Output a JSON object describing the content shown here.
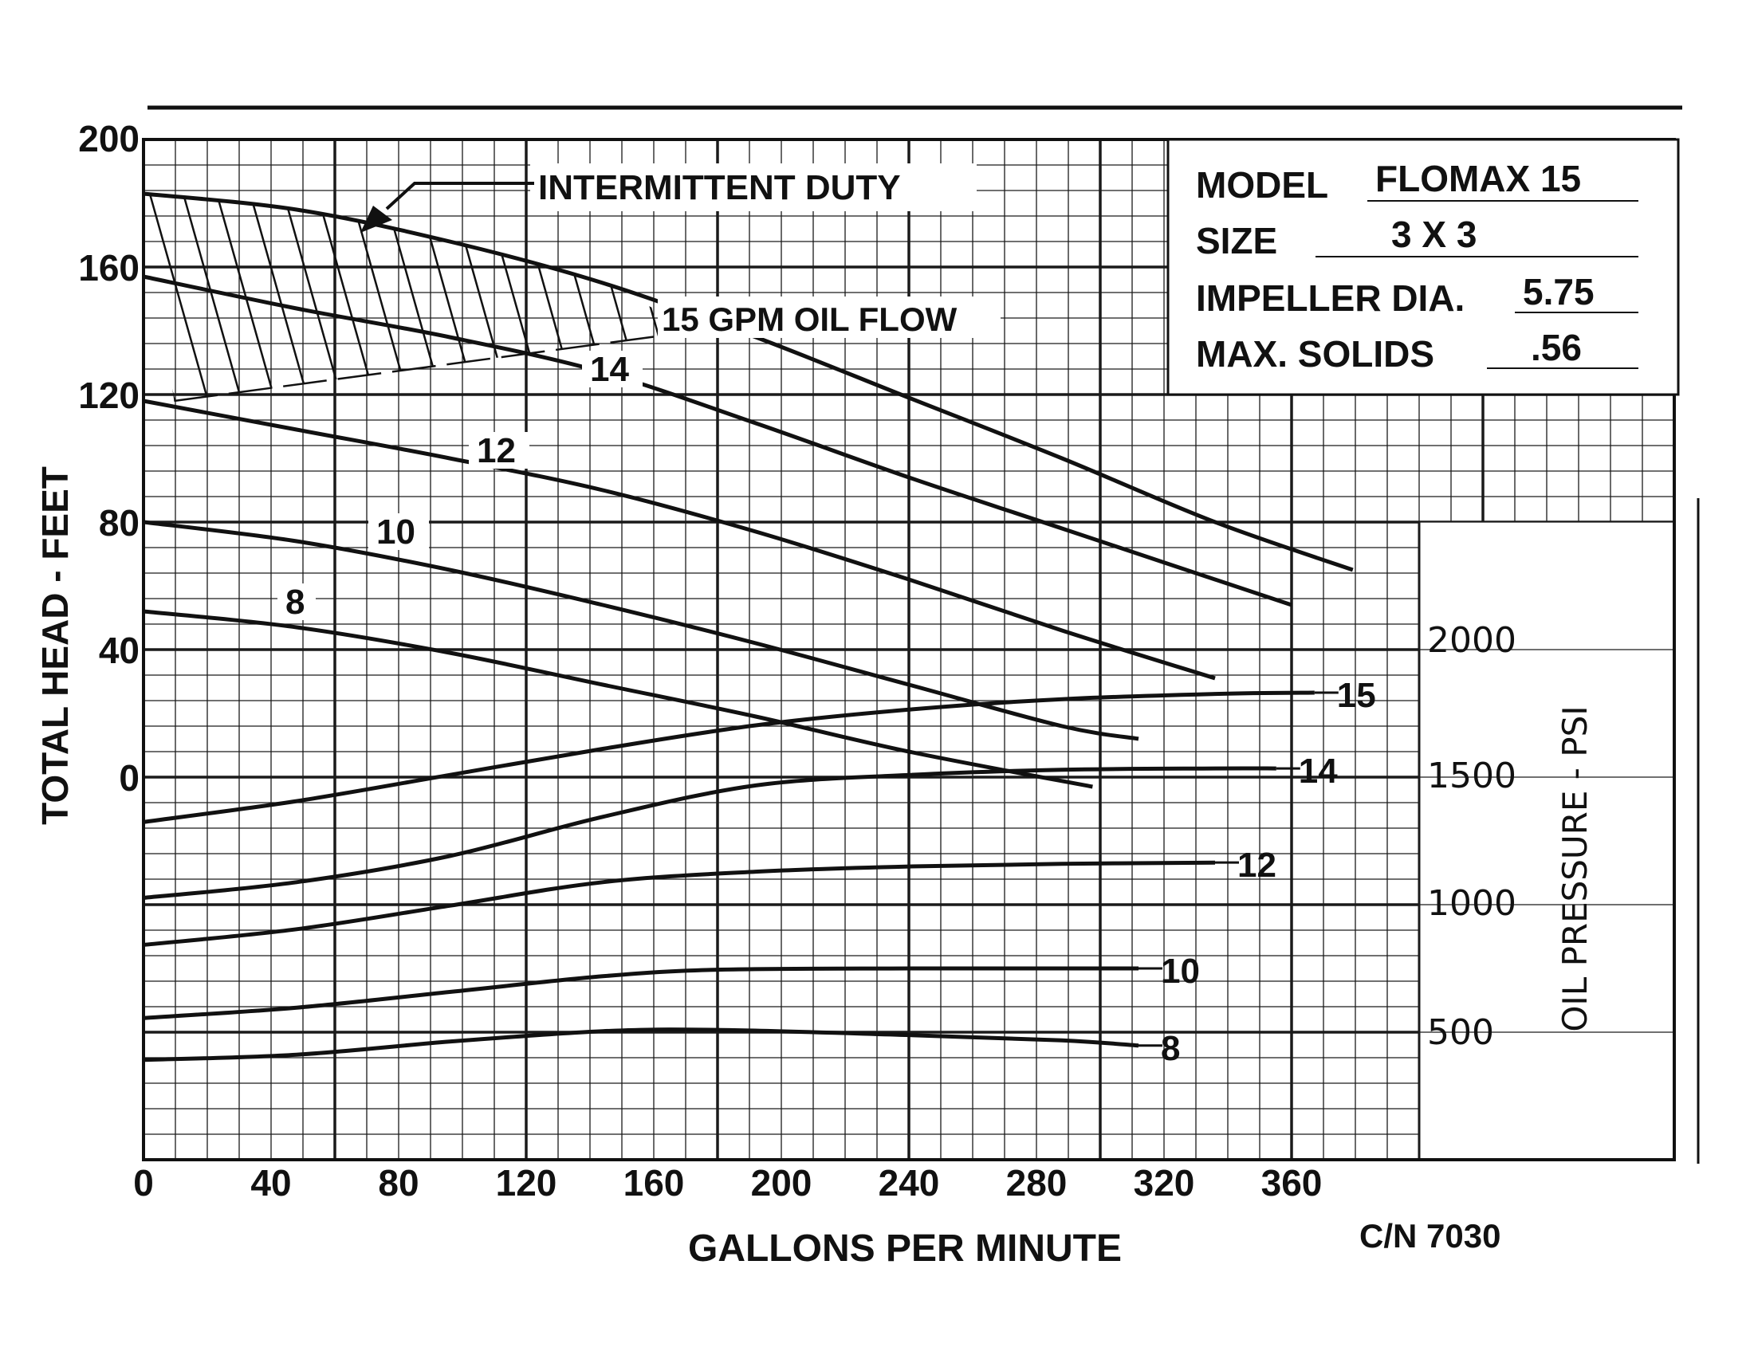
{
  "chart_data": {
    "type": "line",
    "x_axis": {
      "label": "GALLONS PER MINUTE",
      "range": [
        0,
        400
      ],
      "tick_labels": [
        "0",
        "40",
        "80",
        "120",
        "160",
        "200",
        "240",
        "280",
        "320",
        "360"
      ]
    },
    "y_axis_left": {
      "label": "TOTAL HEAD - FEET",
      "range": [
        -120,
        200
      ],
      "tick_labels": [
        "200",
        "160",
        "120",
        "80",
        "40",
        "0"
      ]
    },
    "y_axis_right": {
      "label": "OIL PRESSURE - PSI",
      "tick_labels": [
        "2000",
        "1500",
        "1000",
        "500"
      ]
    },
    "grid": true,
    "info_box": {
      "rows": [
        {
          "label": "MODEL",
          "value": "FLOMAX 15"
        },
        {
          "label": "SIZE",
          "value": "3 X 3"
        },
        {
          "label": "IMPELLER DIA.",
          "value": "5.75"
        },
        {
          "label": "MAX. SOLIDS",
          "value": ".56"
        }
      ]
    },
    "annotations": {
      "intermittent": "INTERMITTENT DUTY",
      "flow_title": "15 GPM OIL FLOW",
      "catalog_number": "C/N 7030"
    },
    "head_curves": [
      {
        "label": "15",
        "points": [
          [
            0,
            183
          ],
          [
            40,
            178
          ],
          [
            80,
            168
          ],
          [
            120,
            155
          ],
          [
            160,
            138
          ],
          [
            200,
            119
          ],
          [
            240,
            100
          ],
          [
            280,
            80
          ],
          [
            316,
            65
          ]
        ]
      },
      {
        "label": "14",
        "points": [
          [
            0,
            157
          ],
          [
            40,
            147
          ],
          [
            80,
            138
          ],
          [
            120,
            127
          ],
          [
            160,
            111
          ],
          [
            200,
            94
          ],
          [
            240,
            78
          ],
          [
            300,
            54
          ]
        ]
      },
      {
        "label": "12",
        "points": [
          [
            0,
            118
          ],
          [
            40,
            109
          ],
          [
            80,
            100
          ],
          [
            120,
            90
          ],
          [
            160,
            77
          ],
          [
            200,
            62
          ],
          [
            240,
            46
          ],
          [
            280,
            31
          ]
        ]
      },
      {
        "label": "10",
        "points": [
          [
            0,
            80
          ],
          [
            40,
            74
          ],
          [
            80,
            65
          ],
          [
            120,
            54
          ],
          [
            160,
            42
          ],
          [
            200,
            29
          ],
          [
            240,
            16
          ],
          [
            260,
            12
          ]
        ]
      },
      {
        "label": "8",
        "points": [
          [
            0,
            52
          ],
          [
            40,
            47
          ],
          [
            80,
            39
          ],
          [
            120,
            29
          ],
          [
            160,
            19
          ],
          [
            200,
            8
          ],
          [
            248,
            -3
          ]
        ]
      }
    ],
    "pressure_curves": [
      {
        "label": "15",
        "points": [
          [
            0,
            1310
          ],
          [
            40,
            1390
          ],
          [
            80,
            1490
          ],
          [
            120,
            1590
          ],
          [
            160,
            1680
          ],
          [
            200,
            1740
          ],
          [
            240,
            1780
          ],
          [
            280,
            1800
          ],
          [
            306,
            1805
          ]
        ]
      },
      {
        "label": "14",
        "points": [
          [
            0,
            1020
          ],
          [
            40,
            1080
          ],
          [
            80,
            1180
          ],
          [
            120,
            1330
          ],
          [
            160,
            1450
          ],
          [
            200,
            1490
          ],
          [
            240,
            1510
          ],
          [
            280,
            1515
          ],
          [
            296,
            1515
          ]
        ]
      },
      {
        "label": "12",
        "points": [
          [
            0,
            840
          ],
          [
            40,
            900
          ],
          [
            80,
            990
          ],
          [
            120,
            1080
          ],
          [
            160,
            1120
          ],
          [
            200,
            1140
          ],
          [
            240,
            1150
          ],
          [
            280,
            1155
          ]
        ]
      },
      {
        "label": "10",
        "points": [
          [
            0,
            560
          ],
          [
            40,
            600
          ],
          [
            80,
            660
          ],
          [
            120,
            720
          ],
          [
            150,
            745
          ],
          [
            200,
            750
          ],
          [
            240,
            750
          ],
          [
            260,
            750
          ]
        ]
      },
      {
        "label": "8",
        "points": [
          [
            0,
            400
          ],
          [
            40,
            420
          ],
          [
            80,
            470
          ],
          [
            120,
            510
          ],
          [
            150,
            515
          ],
          [
            200,
            495
          ],
          [
            240,
            475
          ],
          [
            260,
            455
          ]
        ]
      }
    ]
  }
}
